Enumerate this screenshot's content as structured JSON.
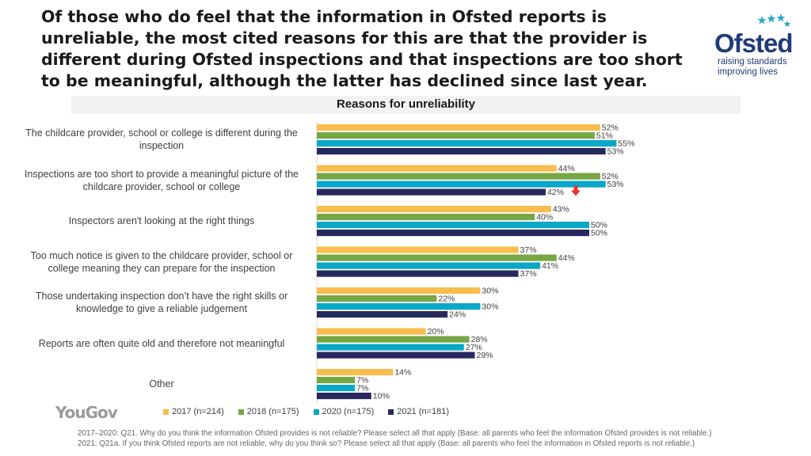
{
  "headline": "Of those who do feel that the information in Ofsted reports is unreliable, the most cited reasons for this are that the provider is different during Ofsted inspections and that inspections are too short to be meaningful, although the latter has declined since last year.",
  "logo": {
    "name": "Ofsted",
    "line1": "raising standards",
    "line2": "improving lives"
  },
  "brand": "YouGov",
  "footnotes": [
    "2017–2020: Q21. Why do you think the information Ofsted provides is not reliable? Please select all that apply (Base: all parents who feel the information Ofsted provides is not reliable.)",
    "2021: Q21a. If you think Ofsted reports are not reliable, why do you think so? Please select all that apply (Base: all parents who feel the information in Ofsted reports is not reliable.)"
  ],
  "colors": {
    "2017": "#f7bd4f",
    "2018": "#77a745",
    "2020": "#0aa7c6",
    "2021": "#27295e",
    "arrow": "#e8332f"
  },
  "chart_data": {
    "type": "bar",
    "orientation": "horizontal",
    "title": "Reasons for unreliability",
    "categories": [
      "The childcare provider, school or college is different during the inspection",
      "Inspections are too short to provide a meaningful picture of the childcare provider, school or college",
      "Inspectors aren't looking at the right things",
      "Too much notice is given to the childcare provider, school or college meaning they can prepare for the inspection",
      "Those undertaking inspection don’t have the right skills or knowledge to give a reliable judgement",
      "Reports are often quite old and therefore not meaningful",
      "Other"
    ],
    "series": [
      {
        "name": "2017 (n=214)",
        "values": [
          52,
          44,
          43,
          37,
          30,
          20,
          14
        ]
      },
      {
        "name": "2018 (n=175)",
        "values": [
          51,
          52,
          40,
          44,
          22,
          28,
          7
        ]
      },
      {
        "name": "2020 (n=175)",
        "values": [
          55,
          53,
          50,
          41,
          30,
          27,
          7
        ]
      },
      {
        "name": "2021 (n=181)",
        "values": [
          53,
          42,
          50,
          37,
          24,
          29,
          10
        ]
      }
    ],
    "value_suffix": "%",
    "xlim": [
      0,
      60
    ],
    "legend_position": "bottom",
    "annotations": [
      {
        "type": "decrease-arrow",
        "category_index": 1,
        "series_index": 3
      }
    ]
  }
}
